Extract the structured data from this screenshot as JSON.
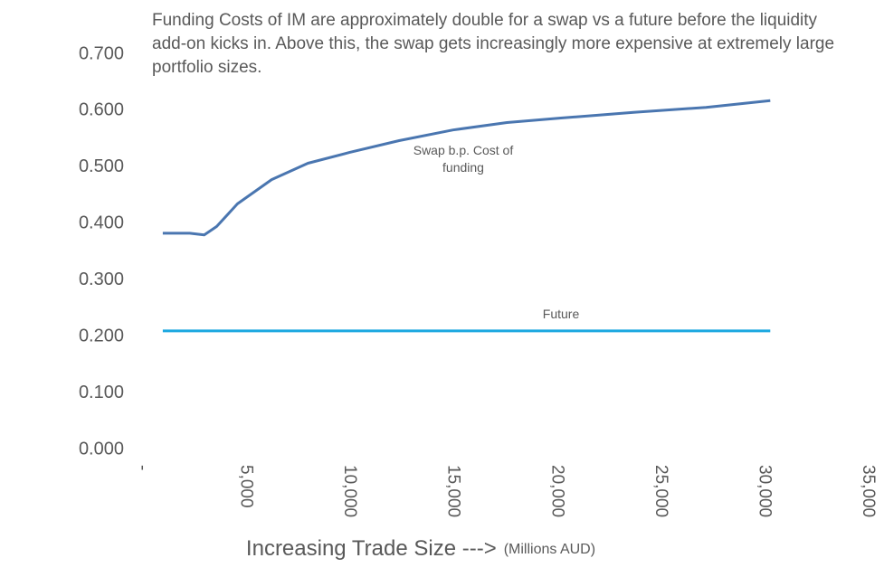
{
  "chart_data": {
    "type": "line",
    "title": "Funding Costs of IM are approximately double for a swap vs a future before the liquidity add-on kicks in. Above this, the swap gets increasingly more expensive at extremely large portfolio sizes.",
    "xlabel": "Increasing Trade Size --->",
    "xlabel_unit": "(Millions AUD)",
    "x": [
      1000,
      2300,
      3000,
      3600,
      4600,
      6250,
      8000,
      10000,
      12400,
      15000,
      17600,
      20200,
      23700,
      27200,
      30300
    ],
    "series": [
      {
        "name": "Swap b.p. Cost of funding",
        "color": "#4a76b0",
        "values": [
          0.383,
          0.383,
          0.38,
          0.395,
          0.435,
          0.478,
          0.507,
          0.526,
          0.547,
          0.566,
          0.579,
          0.587,
          0.597,
          0.606,
          0.618
        ]
      },
      {
        "name": "Future",
        "color": "#1ba8e0",
        "values": [
          0.21,
          0.21,
          0.21,
          0.21,
          0.21,
          0.21,
          0.21,
          0.21,
          0.21,
          0.21,
          0.21,
          0.21,
          0.21,
          0.21,
          0.21
        ]
      }
    ],
    "xlim": [
      0,
      35000
    ],
    "xticks": [
      {
        "value": 0,
        "label": "-"
      },
      {
        "value": 5000,
        "label": "5,000"
      },
      {
        "value": 10000,
        "label": "10,000"
      },
      {
        "value": 15000,
        "label": "15,000"
      },
      {
        "value": 20000,
        "label": "20,000"
      },
      {
        "value": 25000,
        "label": "25,000"
      },
      {
        "value": 30000,
        "label": "30,000"
      },
      {
        "value": 35000,
        "label": "35,000"
      }
    ],
    "ylim": [
      0,
      0.7
    ],
    "yticks": [
      {
        "value": 0,
        "label": "0.000"
      },
      {
        "value": 0.1,
        "label": "0.100"
      },
      {
        "value": 0.2,
        "label": "0.200"
      },
      {
        "value": 0.3,
        "label": "0.300"
      },
      {
        "value": 0.4,
        "label": "0.400"
      },
      {
        "value": 0.5,
        "label": "0.500"
      },
      {
        "value": 0.6,
        "label": "0.600"
      },
      {
        "value": 0.7,
        "label": "0.700"
      }
    ],
    "grid": false
  }
}
